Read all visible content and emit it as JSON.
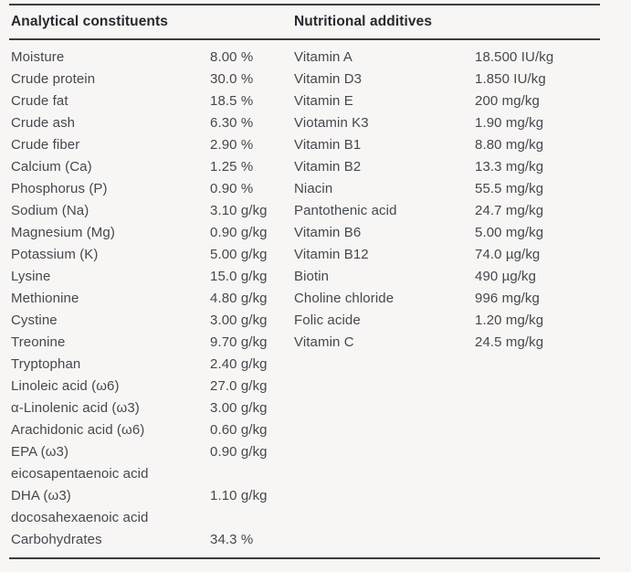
{
  "page": {
    "background_color": "#f7f6f4",
    "rule_color": "#3c3d3f",
    "header_text_color": "#26292f",
    "body_text_color": "#45484e"
  },
  "table": {
    "columns": [
      {
        "header": "Analytical constituents",
        "rows": [
          {
            "label": "Moisture",
            "value": "8.00 %"
          },
          {
            "label": "Crude protein",
            "value": "30.0 %"
          },
          {
            "label": "Crude fat",
            "value": "18.5 %"
          },
          {
            "label": "Crude ash",
            "value": "6.30 %"
          },
          {
            "label": "Crude fiber",
            "value": "2.90 %"
          },
          {
            "label": "Calcium (Ca)",
            "value": "1.25 %"
          },
          {
            "label": "Phosphorus (P)",
            "value": "0.90 %"
          },
          {
            "label": "Sodium (Na)",
            "value": "3.10 g/kg"
          },
          {
            "label": "Magnesium (Mg)",
            "value": "0.90 g/kg"
          },
          {
            "label": "Potassium (K)",
            "value": "5.00 g/kg"
          },
          {
            "label": "Lysine",
            "value": "15.0 g/kg"
          },
          {
            "label": "Methionine",
            "value": "4.80 g/kg"
          },
          {
            "label": "Cystine",
            "value": "3.00 g/kg"
          },
          {
            "label": "Treonine",
            "value": "9.70 g/kg"
          },
          {
            "label": "Tryptophan",
            "value": "2.40 g/kg"
          },
          {
            "label": "Linoleic acid (ω6)",
            "value": "27.0 g/kg"
          },
          {
            "label": "α-Linolenic acid (ω3)",
            "value": "3.00 g/kg"
          },
          {
            "label": "Arachidonic acid (ω6)",
            "value": "0.60 g/kg"
          },
          {
            "label": "EPA (ω3)",
            "value": "0.90 g/kg"
          },
          {
            "label": "eicosapentaenoic acid",
            "value": ""
          },
          {
            "label": "DHA (ω3)",
            "value": "1.10 g/kg"
          },
          {
            "label": "docosahexaenoic acid",
            "value": ""
          },
          {
            "label": "Carbohydrates",
            "value": "34.3 %"
          }
        ]
      },
      {
        "header": "Nutritional additives",
        "rows": [
          {
            "label": "Vitamin A",
            "value": "18.500 IU/kg"
          },
          {
            "label": "Vitamin D3",
            "value": "1.850 IU/kg"
          },
          {
            "label": "Vitamin E",
            "value": "200 mg/kg"
          },
          {
            "label": "Viotamin K3",
            "value": "1.90 mg/kg"
          },
          {
            "label": "Vitamin B1",
            "value": "8.80 mg/kg"
          },
          {
            "label": "Vitamin B2",
            "value": "13.3 mg/kg"
          },
          {
            "label": "Niacin",
            "value": "55.5 mg/kg"
          },
          {
            "label": "Pantothenic acid",
            "value": "24.7 mg/kg"
          },
          {
            "label": "Vitamin B6",
            "value": "5.00 mg/kg"
          },
          {
            "label": "Vitamin B12",
            "value": "74.0 µg/kg"
          },
          {
            "label": "Biotin",
            "value": "490 µg/kg"
          },
          {
            "label": "Choline chloride",
            "value": "996 mg/kg"
          },
          {
            "label": "Folic acide",
            "value": "1.20 mg/kg"
          },
          {
            "label": "Vitamin C",
            "value": "24.5 mg/kg"
          }
        ]
      }
    ]
  }
}
